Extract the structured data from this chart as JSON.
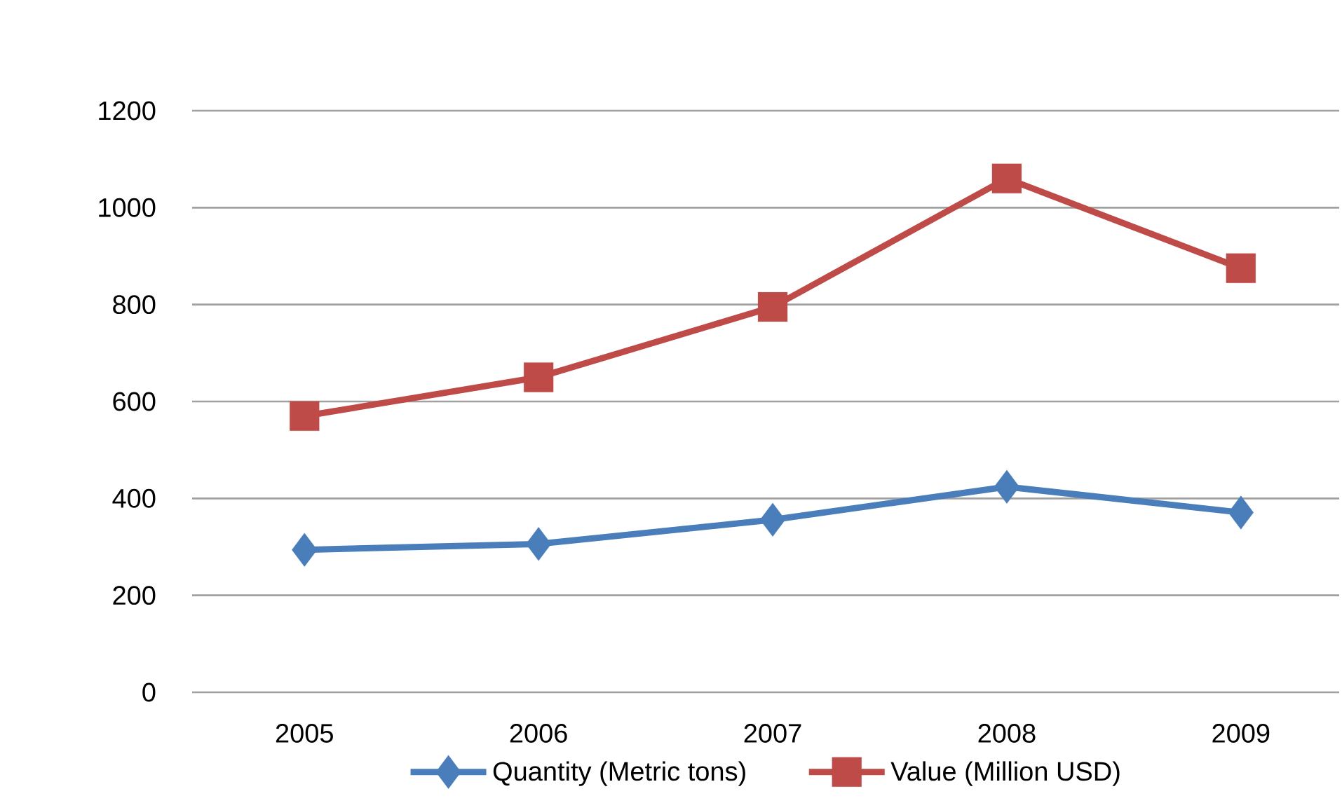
{
  "chart_data": {
    "type": "line",
    "categories": [
      "2005",
      "2006",
      "2007",
      "2008",
      "2009"
    ],
    "series": [
      {
        "name": "Quantity (Metric tons)",
        "color": "#4a7ebb",
        "marker": "diamond",
        "values": [
          294,
          306,
          356,
          424,
          371
        ]
      },
      {
        "name": "Value (Million USD)",
        "color": "#be4b48",
        "marker": "square",
        "values": [
          570,
          650,
          795,
          1060,
          875
        ]
      }
    ],
    "ylim": [
      0,
      1200
    ],
    "yticks": [
      0,
      200,
      400,
      600,
      800,
      1000,
      1200
    ],
    "grid": "y",
    "legend": "bottom",
    "line_style": "solid"
  }
}
